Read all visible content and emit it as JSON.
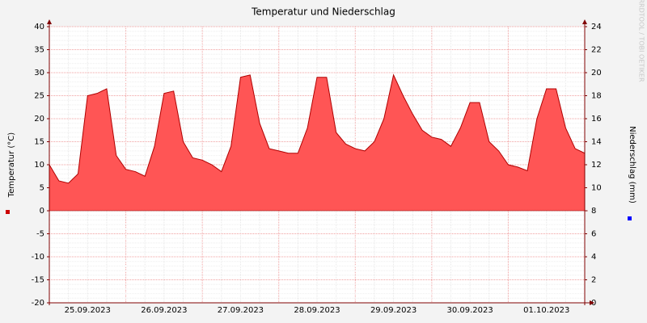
{
  "chart_data": {
    "type": "area",
    "title": "Temperatur und Niederschlag",
    "ylabel": "Temperatur (°C)",
    "y2label": "Niederschlag (mm)",
    "watermark": "RRDTOOL / TOBI OETIKER",
    "x_labels": [
      "25.09.2023",
      "26.09.2023",
      "27.09.2023",
      "28.09.2023",
      "29.09.2023",
      "30.09.2023",
      "01.10.2023"
    ],
    "ylim": [
      -20,
      40
    ],
    "yticks": [
      -20,
      -15,
      -10,
      -5,
      0,
      5,
      10,
      15,
      20,
      25,
      30,
      35,
      40
    ],
    "y2lim": [
      0,
      24
    ],
    "y2ticks": [
      0,
      2,
      4,
      6,
      8,
      10,
      12,
      14,
      16,
      18,
      20,
      22,
      24
    ],
    "y2color": "#0000ff",
    "grid": true,
    "series": [
      {
        "color": "#ff5555",
        "values": [
          10,
          6.5,
          6,
          8,
          25,
          25.5,
          26.5,
          12,
          9,
          8.5,
          7.5,
          14,
          25.5,
          26,
          15,
          11.5,
          11,
          10,
          8.5,
          14,
          29,
          29.5,
          19,
          13.5,
          13,
          12.5,
          12.5,
          18,
          29,
          29,
          17,
          14.5,
          13.5,
          13,
          15,
          20,
          29.5,
          25,
          21,
          17.5,
          16,
          15.5,
          14,
          18,
          23.5,
          23.5,
          15,
          13,
          10,
          9.5,
          8.7,
          20,
          26.5,
          26.5,
          18,
          13.5,
          12.5
        ]
      }
    ]
  }
}
